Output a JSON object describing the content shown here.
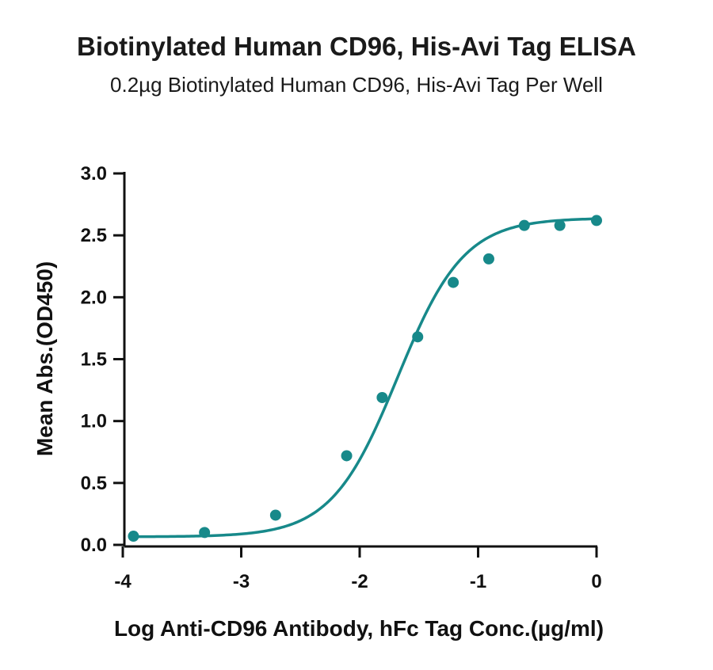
{
  "chart_data": {
    "type": "scatter",
    "title": "Biotinylated Human CD96, His-Avi Tag ELISA",
    "subtitle": "0.2µg Biotinylated Human CD96, His-Avi Tag Per Well",
    "xlabel": "Log Anti-CD96 Antibody, hFc Tag Conc.(µg/ml)",
    "ylabel": "Mean Abs.(OD450)",
    "xlim": [
      -4,
      0
    ],
    "ylim": [
      0,
      3
    ],
    "x_ticks": [
      -4,
      -3,
      -2,
      -1,
      0
    ],
    "y_ticks": [
      0.0,
      0.5,
      1.0,
      1.5,
      2.0,
      2.5,
      3.0
    ],
    "x_tick_labels": [
      "-4",
      "-3",
      "-2",
      "-1",
      "0"
    ],
    "y_tick_labels": [
      "0.0",
      "0.5",
      "1.0",
      "1.5",
      "2.0",
      "2.5",
      "3.0"
    ],
    "grid": false,
    "color": "#17898a",
    "series": [
      {
        "x": [
          -3.91,
          -3.31,
          -2.71,
          -2.11,
          -1.81,
          -1.51,
          -1.21,
          -0.91,
          -0.61,
          -0.31,
          0.0
        ],
        "y": [
          0.07,
          0.1,
          0.24,
          0.72,
          1.19,
          1.68,
          2.12,
          2.31,
          2.58,
          2.58,
          2.62
        ],
        "fit": "4PL"
      }
    ]
  }
}
